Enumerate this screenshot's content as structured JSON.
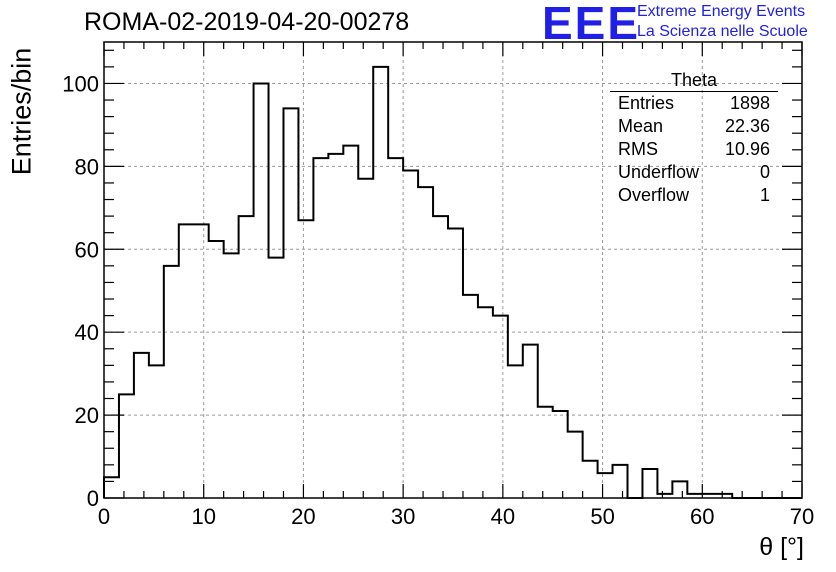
{
  "header": {
    "title": "ROMA-02-2019-04-20-00278",
    "logo_text": "EEE",
    "logo_line1": "Extreme Energy Events",
    "logo_line2": "La Scienza nelle Scuole",
    "logo_color": "#1f1fe6"
  },
  "stats": {
    "title": "Theta",
    "rows": [
      {
        "label": "Entries",
        "value": "1898"
      },
      {
        "label": "Mean",
        "value": "22.36"
      },
      {
        "label": "RMS",
        "value": "10.96"
      },
      {
        "label": "Underflow",
        "value": "0"
      },
      {
        "label": "Overflow",
        "value": "1"
      }
    ]
  },
  "chart_data": {
    "type": "bar",
    "histogram": true,
    "title": "ROMA-02-2019-04-20-00278",
    "xlabel": "θ [°]",
    "ylabel": "Entries/bin",
    "xlim": [
      0,
      70
    ],
    "ylim": [
      0,
      110
    ],
    "x_ticks": [
      0,
      10,
      20,
      30,
      40,
      50,
      60,
      70
    ],
    "y_ticks": [
      0,
      20,
      40,
      60,
      80,
      100
    ],
    "grid": true,
    "bin_width": 1.5,
    "bin_start": 0,
    "values": [
      5,
      25,
      35,
      32,
      56,
      66,
      66,
      62,
      59,
      68,
      100,
      58,
      94,
      67,
      82,
      83,
      85,
      77,
      104,
      82,
      79,
      75,
      68,
      65,
      49,
      46,
      44,
      32,
      37,
      22,
      21,
      16,
      9,
      6,
      8,
      0,
      7,
      1,
      4,
      1,
      1,
      1,
      0,
      0,
      0,
      0,
      0
    ]
  }
}
